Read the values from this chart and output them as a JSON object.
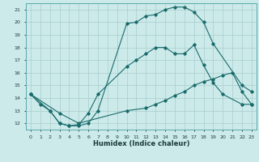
{
  "xlabel": "Humidex (Indice chaleur)",
  "bg_color": "#cceaea",
  "grid_color": "#aacccc",
  "line_color": "#1a6b6b",
  "xlim": [
    -0.5,
    23.5
  ],
  "ylim": [
    11.5,
    21.5
  ],
  "xtick_labels": [
    "0",
    "1",
    "2",
    "3",
    "4",
    "5",
    "6",
    "7",
    "8",
    "9",
    "10",
    "11",
    "12",
    "13",
    "14",
    "15",
    "16",
    "17",
    "18",
    "19",
    "20",
    "21",
    "22",
    "23"
  ],
  "ytick_labels": [
    "12",
    "13",
    "14",
    "15",
    "16",
    "17",
    "18",
    "19",
    "20",
    "21"
  ],
  "series": [
    {
      "x": [
        0,
        1,
        2,
        3,
        4,
        5,
        6,
        7,
        10,
        11,
        12,
        13,
        14,
        15,
        16,
        17,
        18,
        19,
        22,
        23
      ],
      "y": [
        14.3,
        13.5,
        13.0,
        12.0,
        11.8,
        11.8,
        12.0,
        13.0,
        19.9,
        20.0,
        20.5,
        20.6,
        21.0,
        21.2,
        21.2,
        20.8,
        20.0,
        18.3,
        15.0,
        14.5
      ]
    },
    {
      "x": [
        0,
        2,
        3,
        4,
        5,
        6,
        7,
        10,
        11,
        12,
        13,
        14,
        15,
        16,
        17,
        18,
        19,
        20,
        22,
        23
      ],
      "y": [
        14.3,
        13.0,
        12.0,
        11.8,
        11.9,
        12.8,
        14.3,
        16.5,
        17.0,
        17.5,
        18.0,
        18.0,
        17.5,
        17.5,
        18.2,
        16.6,
        15.2,
        14.3,
        13.5,
        13.5
      ]
    },
    {
      "x": [
        0,
        3,
        5,
        10,
        12,
        13,
        14,
        15,
        16,
        17,
        18,
        19,
        20,
        21,
        22,
        23
      ],
      "y": [
        14.3,
        12.8,
        12.0,
        13.0,
        13.2,
        13.5,
        13.8,
        14.2,
        14.5,
        15.0,
        15.3,
        15.5,
        15.8,
        16.0,
        14.5,
        13.5
      ]
    }
  ]
}
